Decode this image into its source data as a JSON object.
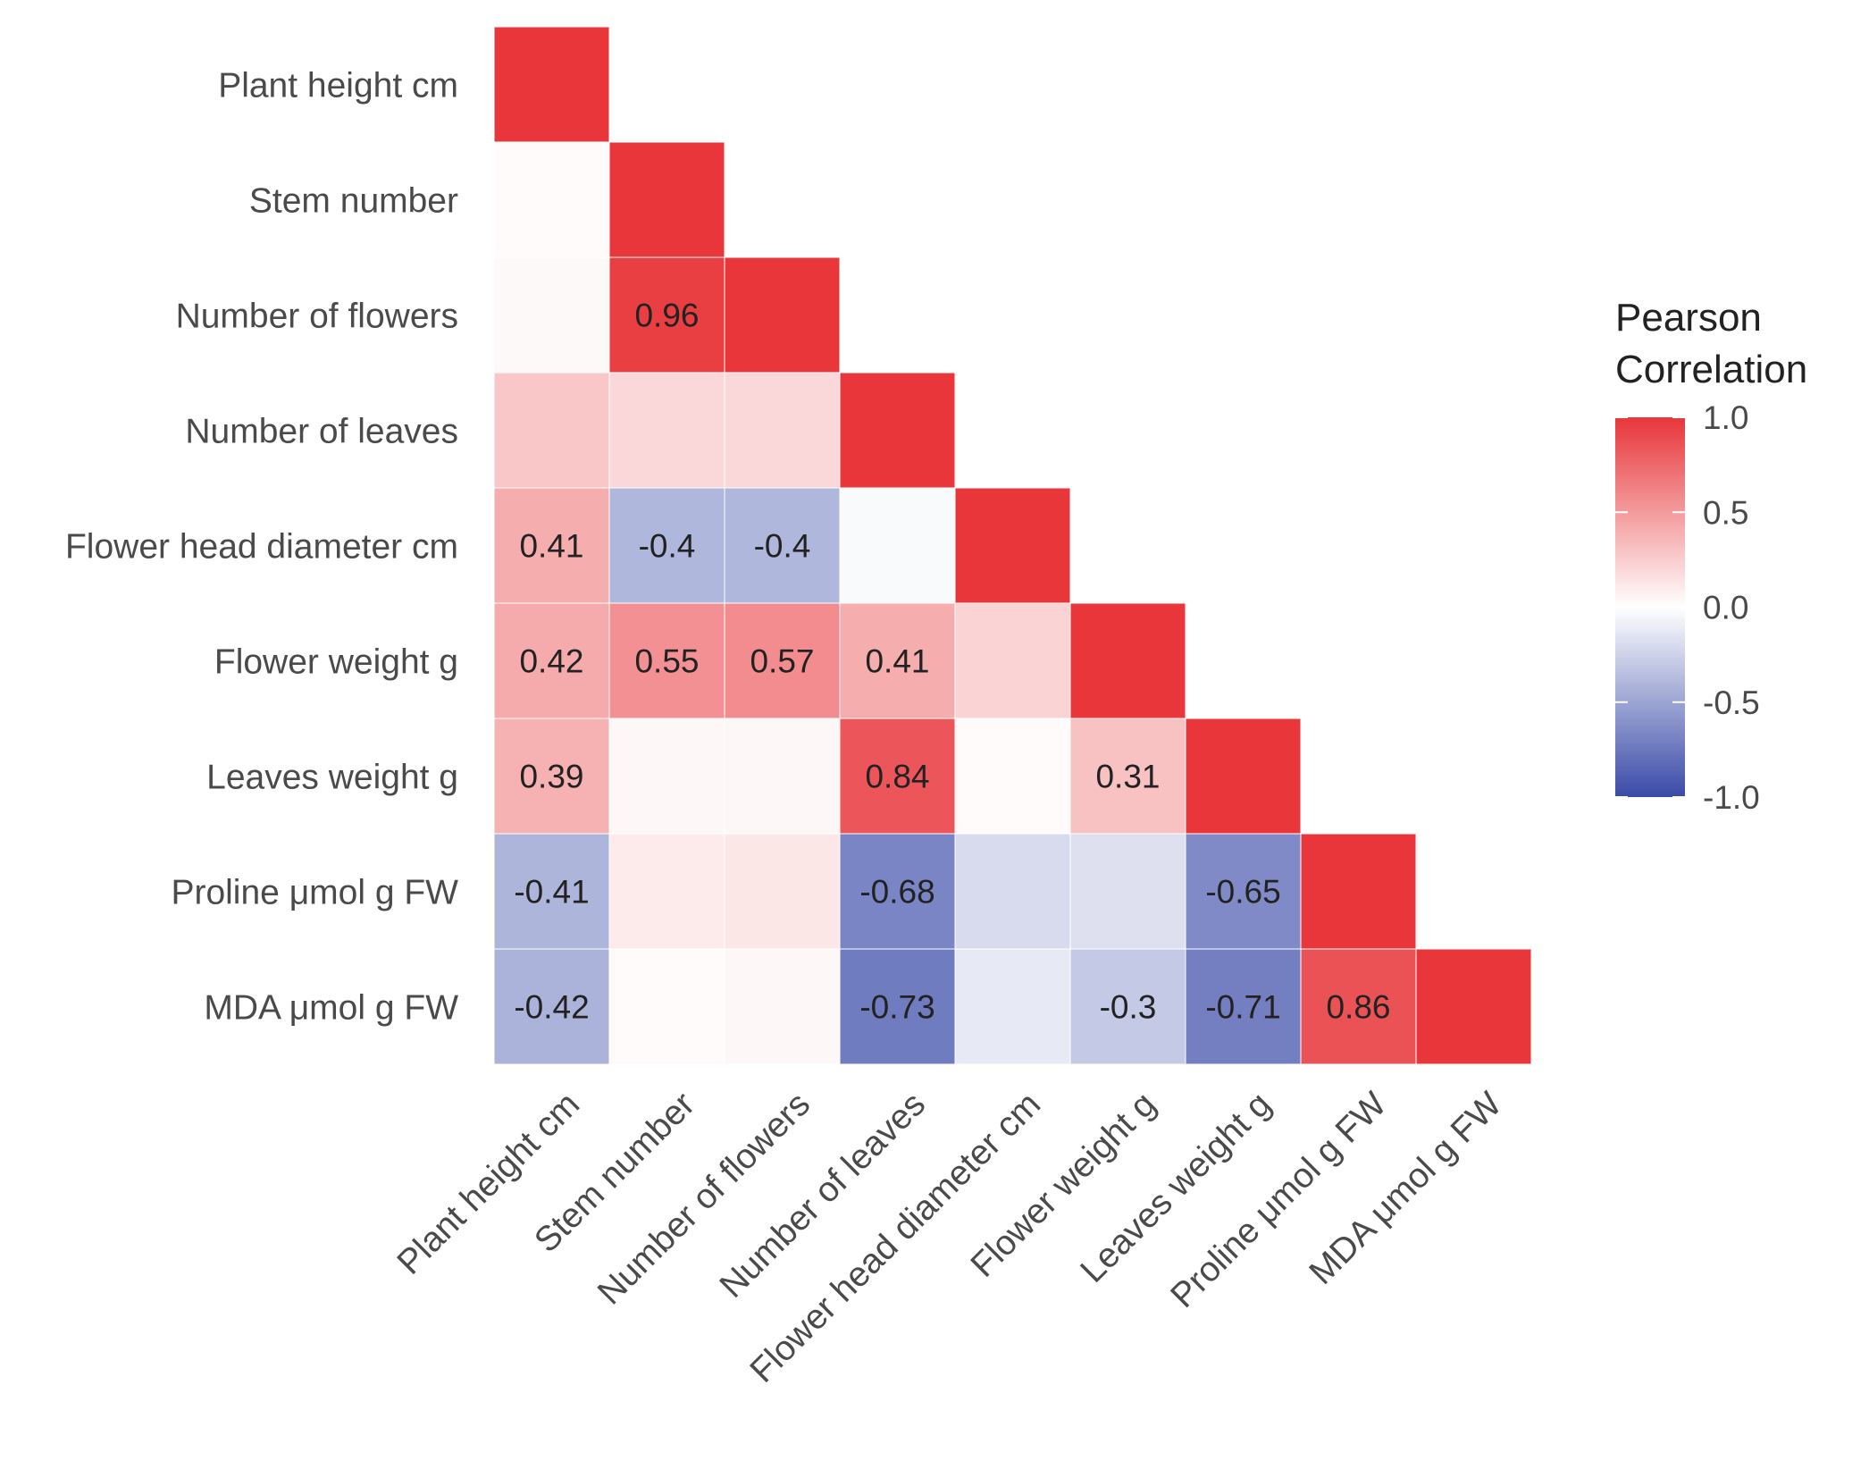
{
  "chart_data": {
    "type": "heatmap",
    "title": "",
    "xlabel": "",
    "ylabel": "",
    "variables": [
      "Plant height cm",
      "Stem number",
      "Number of flowers",
      "Number of leaves",
      "Flower head diameter cm",
      "Flower weight g",
      "Leaves weight g",
      "Proline μmol g FW",
      "MDA μmol g FW"
    ],
    "matrix": [
      [
        1.0,
        null,
        null,
        null,
        null,
        null,
        null,
        null,
        null
      ],
      [
        0.02,
        1.0,
        null,
        null,
        null,
        null,
        null,
        null,
        null
      ],
      [
        0.03,
        0.96,
        1.0,
        null,
        null,
        null,
        null,
        null,
        null
      ],
      [
        0.28,
        0.2,
        0.2,
        1.0,
        null,
        null,
        null,
        null,
        null
      ],
      [
        0.41,
        -0.4,
        -0.4,
        -0.03,
        1.0,
        null,
        null,
        null,
        null
      ],
      [
        0.42,
        0.55,
        0.57,
        0.41,
        0.22,
        1.0,
        null,
        null,
        null
      ],
      [
        0.39,
        0.04,
        0.04,
        0.84,
        0.02,
        0.31,
        1.0,
        null,
        null
      ],
      [
        -0.41,
        0.1,
        0.12,
        -0.68,
        -0.2,
        -0.17,
        -0.65,
        1.0,
        null
      ],
      [
        -0.42,
        0.02,
        0.04,
        -0.73,
        -0.12,
        -0.3,
        -0.71,
        0.86,
        1.0
      ]
    ],
    "labels": [
      [
        null,
        null,
        null,
        null,
        null,
        null,
        null,
        null,
        null
      ],
      [
        null,
        null,
        null,
        null,
        null,
        null,
        null,
        null,
        null
      ],
      [
        null,
        "0.96",
        null,
        null,
        null,
        null,
        null,
        null,
        null
      ],
      [
        null,
        null,
        null,
        null,
        null,
        null,
        null,
        null,
        null
      ],
      [
        "0.41",
        "-0.4",
        "-0.4",
        null,
        null,
        null,
        null,
        null,
        null
      ],
      [
        "0.42",
        "0.55",
        "0.57",
        "0.41",
        null,
        null,
        null,
        null,
        null
      ],
      [
        "0.39",
        null,
        null,
        "0.84",
        null,
        "0.31",
        null,
        null,
        null
      ],
      [
        "-0.41",
        null,
        null,
        "-0.68",
        null,
        null,
        "-0.65",
        null,
        null
      ],
      [
        "-0.42",
        null,
        null,
        "-0.73",
        null,
        "-0.3",
        "-0.71",
        "0.86",
        null
      ]
    ],
    "legend": {
      "title_lines": [
        "Pearson",
        "Correlation"
      ],
      "ticks": [
        1.0,
        0.5,
        0.0,
        -0.5,
        -1.0
      ],
      "tick_labels": [
        "1.0",
        "0.5",
        "0.0",
        "-0.5",
        "-1.0"
      ],
      "range": [
        -1.0,
        1.0
      ],
      "position": "right"
    },
    "colors": {
      "high": "#E8363A",
      "mid": "#FFFFFF",
      "low": "#3A4BA8"
    }
  }
}
